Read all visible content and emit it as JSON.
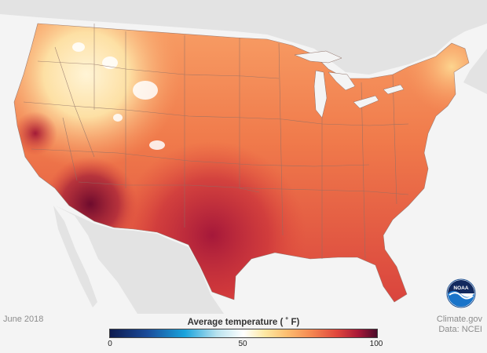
{
  "map": {
    "region": "Contiguous United States",
    "variable": "Average temperature",
    "colors": {
      "cool_region": "#fde0a4",
      "mid_region": "#f6874f",
      "warm_region": "#e14a3b",
      "hot_region": "#b8213a",
      "hottest_region": "#7d0f2f",
      "mountain_snow": "#ffffff",
      "surrounding_land": "#e4e4e4",
      "water": "#f4f4f4",
      "state_borders": "#8e6f66"
    }
  },
  "footer": {
    "date_label": "June 2018",
    "credit_line1": "Climate.gov",
    "credit_line2": "Data: NCEI"
  },
  "legend": {
    "title": "Average temperature ( ˚ F)",
    "tick_min": "0",
    "tick_mid": "50",
    "tick_max": "100"
  },
  "logo": {
    "text": "NOAA",
    "icon": "noaa-logo-icon"
  }
}
